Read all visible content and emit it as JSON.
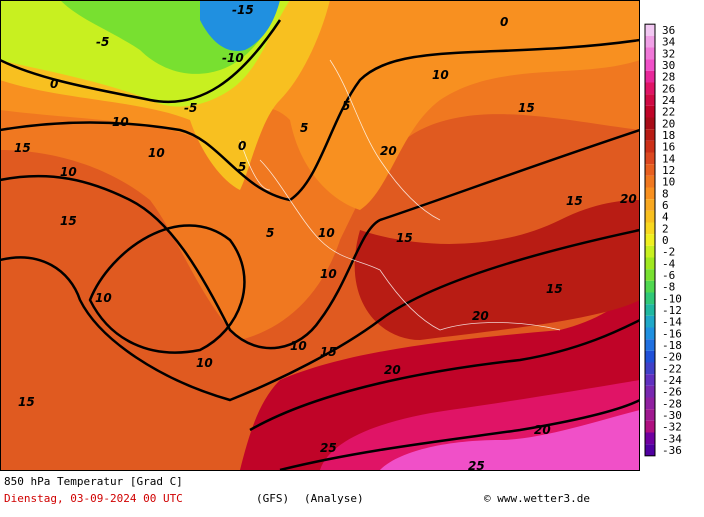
{
  "map": {
    "title": "850 hPa Temperatur [Grad C]",
    "date": "Dienstag, 03-09-2024  00 UTC",
    "model": "(GFS)",
    "run": "(Analyse)",
    "credit": "© www.wetter3.de",
    "scale": {
      "values": [
        36,
        34,
        32,
        30,
        28,
        26,
        24,
        22,
        20,
        18,
        16,
        14,
        12,
        10,
        8,
        6,
        4,
        2,
        0,
        -2,
        -4,
        -6,
        -8,
        -10,
        -12,
        -14,
        -16,
        -18,
        -20,
        -22,
        -24,
        -26,
        -28,
        -30,
        -32,
        -34,
        -36
      ],
      "colors": [
        "#f2c8f2",
        "#f0a0e6",
        "#f078d8",
        "#f050c8",
        "#e8289a",
        "#e01466",
        "#d00a44",
        "#c00428",
        "#a80c18",
        "#b81c14",
        "#cc3018",
        "#dc4820",
        "#e86020",
        "#f07820",
        "#f89020",
        "#f8a820",
        "#f8c020",
        "#f8d820",
        "#f0f020",
        "#c8f020",
        "#a0e820",
        "#78e030",
        "#50d850",
        "#30c878",
        "#20b8a0",
        "#20a8c8",
        "#2090e0",
        "#2070e0",
        "#2050d8",
        "#4040c8",
        "#6030c0",
        "#7828b0",
        "#9020a0",
        "#a01890",
        "#b01080",
        "#7000a0",
        "#5000a0"
      ]
    },
    "contour_labels": [
      "-15",
      "-10",
      "-5",
      "0",
      "5",
      "10",
      "15",
      "20",
      "25",
      "0",
      "5",
      "10",
      "15",
      "20",
      "10",
      "5",
      "10",
      "15",
      "10",
      "10",
      "15",
      "20",
      "15",
      "15",
      "10",
      "5",
      "0",
      "-5",
      "10",
      "15",
      "20",
      "25",
      "10",
      "15",
      "20"
    ]
  }
}
